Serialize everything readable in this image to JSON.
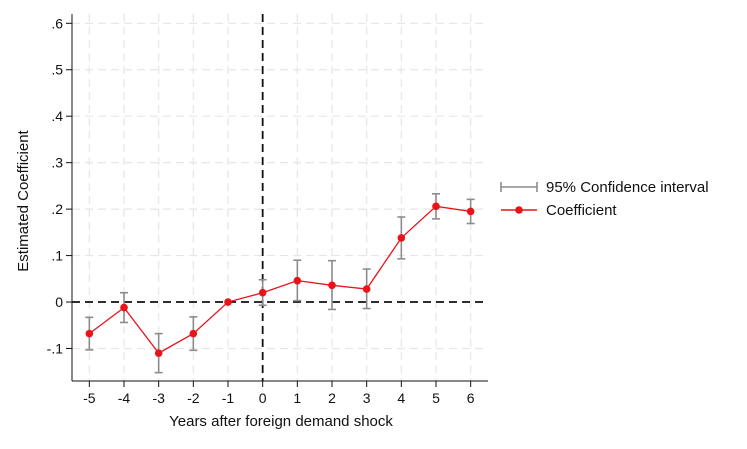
{
  "chart_data": {
    "type": "line",
    "title": "",
    "xlabel": "Years after foreign demand shock",
    "ylabel": "Estimated Coefficient",
    "x": [
      -5,
      -4,
      -3,
      -2,
      -1,
      0,
      1,
      2,
      3,
      4,
      5,
      6
    ],
    "xticks": [
      "-5",
      "-4",
      "-3",
      "-2",
      "-1",
      "0",
      "1",
      "2",
      "3",
      "4",
      "5",
      "6"
    ],
    "ylim": [
      -0.17,
      0.62
    ],
    "yticks": [
      {
        "value": -0.1,
        "label": "-.1"
      },
      {
        "value": 0,
        "label": "0"
      },
      {
        "value": 0.1,
        "label": ".1"
      },
      {
        "value": 0.2,
        "label": ".2"
      },
      {
        "value": 0.3,
        "label": ".3"
      },
      {
        "value": 0.4,
        "label": ".4"
      },
      {
        "value": 0.5,
        "label": ".5"
      },
      {
        "value": 0.6,
        "label": ".6"
      }
    ],
    "grid": true,
    "reference_lines": {
      "x": 0,
      "y": 0
    },
    "legend_position": "right",
    "series": [
      {
        "name": "Coefficient",
        "color": "#e8141a",
        "values": [
          -0.068,
          -0.012,
          -0.11,
          -0.068,
          0.0,
          0.02,
          0.046,
          0.036,
          0.028,
          0.138,
          0.206,
          0.195
        ]
      },
      {
        "name": "95% Confidence interval",
        "color": "#8c8c8c",
        "lower": [
          -0.103,
          -0.044,
          -0.152,
          -0.104,
          0.0,
          -0.007,
          0.003,
          -0.016,
          -0.014,
          0.093,
          0.179,
          0.169
        ],
        "upper": [
          -0.033,
          0.02,
          -0.068,
          -0.032,
          0.0,
          0.048,
          0.09,
          0.089,
          0.071,
          0.183,
          0.233,
          0.221
        ]
      }
    ]
  },
  "legend": {
    "ci_label": "95% Confidence interval",
    "coef_label": "Coefficient"
  }
}
